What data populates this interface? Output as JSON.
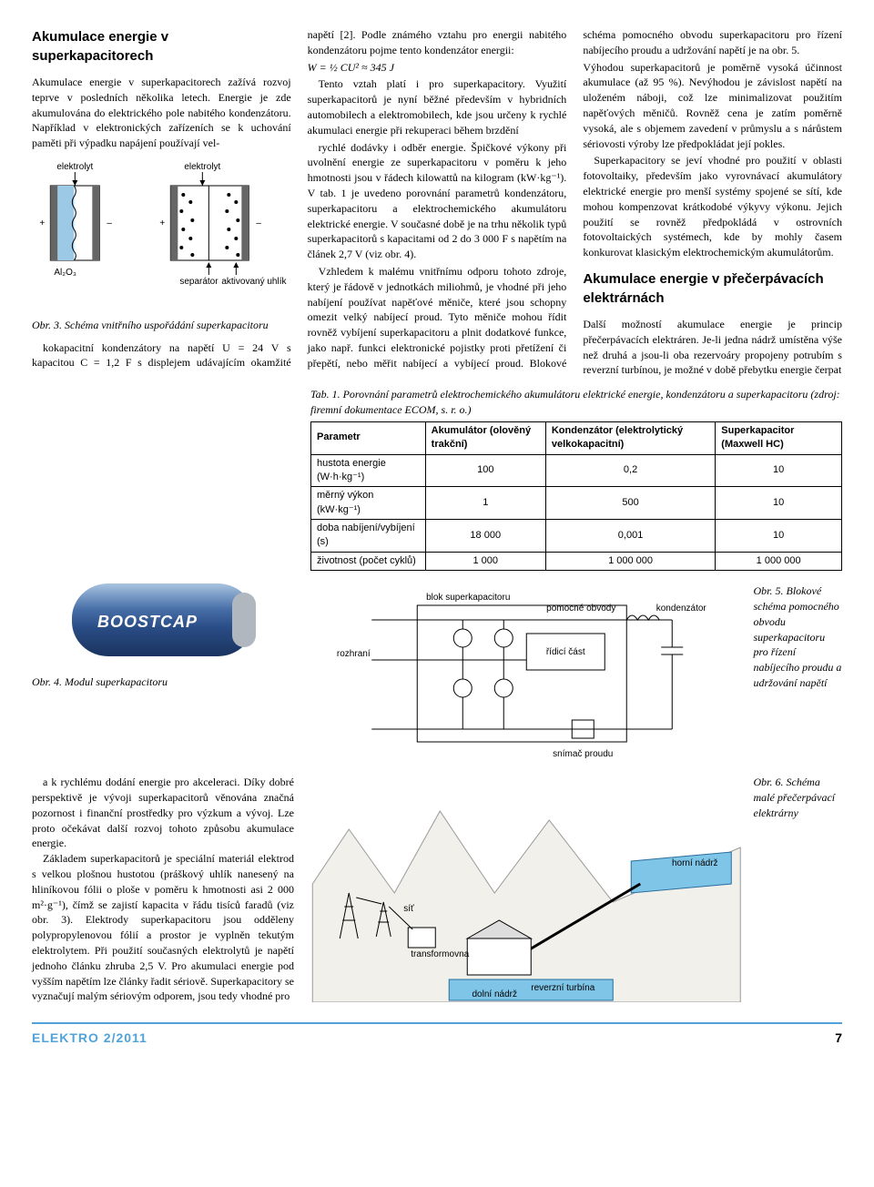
{
  "section1": {
    "title": "Akumulace energie v superkapacitorech",
    "p1": "Akumulace energie v superkapacitorech zažívá rozvoj teprve v posledních několika letech. Energie je zde akumulována do elektrického pole nabitého kondenzátoru. Například v elektronických zařízeních se k uchování paměti při výpadku napájení používají vel-",
    "fig3": {
      "labels": {
        "elektrolyt1": "elektrolyt",
        "elektrolyt2": "elektrolyt",
        "al2o3": "Al₂O₃",
        "separator": "separátor",
        "uhlik": "aktivovaný uhlík",
        "plus": "+",
        "minus": "–"
      },
      "caption": "Obr. 3. Schéma vnitřního uspořádání superkapacitoru",
      "colors": {
        "fill1": "#9bc9e6",
        "fill2": "#cfe5f2",
        "stroke": "#000000"
      }
    },
    "p2": "kokapacitní kondenzátory na napětí U = 24 V s kapacitou C = 1,2 F s displejem udávajícím okamžité napětí [2]. Podle známého vztahu pro energii nabitého kondenzátoru pojme tento kondenzátor energii:",
    "formula": "W = ½ CU² ≈ 345 J",
    "p3": "Tento vztah platí i pro superkapacitory. Využití superkapacitorů je nyní běžné především v hybridních automobilech a elektromobilech, kde jsou určeny k rychlé akumulaci energie při rekuperaci během brzdění",
    "p4": "rychlé dodávky i odběr energie. Špičkové výkony při uvolnění energie ze superkapacitoru v poměru k jeho hmotnosti jsou v řádech kilowattů na kilogram (kW·kg⁻¹). V tab. 1 je uvedeno porovnání parametrů kondenzátoru, superkapacitoru a elektrochemického akumulátoru elektrické energie. V současné době je na trhu několik typů superkapacitorů s kapacitami od 2 do 3 000 F s napětím na článek 2,7 V (viz obr. 4).",
    "p5": "Vzhledem k malému vnitřnímu odporu tohoto zdroje, který je řádově v jednotkách miliohmů, je vhodné při jeho nabíjení používat napěťové měniče, které jsou schopny omezit velký nabíjecí proud. Tyto měniče mohou řídit rovněž vybíjení superkapacitoru a plnit dodatkové funkce, jako např. funkci elektronické pojistky proti přetížení či přepětí, nebo měřit nabíjecí a vybíjecí proud. Blokové schéma pomocného obvodu superkapacitoru pro řízení nabíjecího proudu a udržování napětí je na obr. 5.",
    "p6": "Výhodou superkapacitorů je poměrně vysoká účinnost akumulace (až 95 %). Nevýhodou je závislost napětí na uloženém náboji, což lze minimalizovat použitím napěťových měničů. Rovněž cena je zatím poměrně vysoká, ale s objemem zavedení v průmyslu a s nárůstem sériovosti výroby lze předpokládat její pokles.",
    "p7": "Superkapacitory se jeví vhodné pro použití v oblasti fotovoltaiky, především jako vyrovnávací akumulátory elektrické energie pro menší systémy spojené se sítí, kde mohou kompenzovat krátkodobé výkyvy výkonu. Jejich použití se rovněž předpokládá v ostrovních fotovoltaických systémech, kde by mohly časem konkurovat klasickým elektrochemickým akumulátorům."
  },
  "section2": {
    "title": "Akumulace energie v přečerpávacích elektrárnách",
    "p1": "Další možností akumulace energie je princip přečerpávacích elektráren. Je-li jedna nádrž umístěna výše než druhá a jsou-li oba rezervoáry propojeny potrubím s reverzní turbínou, je možné v době přebytku energie čerpat"
  },
  "table1": {
    "caption": "Tab. 1. Porovnání parametrů elektrochemického akumulátoru elektrické energie, kondenzátoru a superkapacitoru (zdroj: firemní dokumentace ECOM, s. r. o.)",
    "headers": [
      "Parametr",
      "Akumulátor (olověný trakční)",
      "Kondenzátor (elektrolytický velkokapacitní)",
      "Superkapacitor (Maxwell HC)"
    ],
    "rows": [
      [
        "hustota energie (W·h·kg⁻¹)",
        "100",
        "0,2",
        "10"
      ],
      [
        "měrný výkon (kW·kg⁻¹)",
        "1",
        "500",
        "10"
      ],
      [
        "doba nabíjení/vybíjení (s)",
        "18 000",
        "0,001",
        "10"
      ],
      [
        "životnost (počet cyklů)",
        "1 000",
        "1 000 000",
        "1 000 000"
      ]
    ]
  },
  "fig4": {
    "caption": "Obr. 4. Modul superkapacitoru"
  },
  "fig5": {
    "caption": "Obr. 5. Blokové schéma pomocného obvodu superkapacitoru pro řízení nabíjecího proudu a udržování napětí",
    "labels": {
      "rozhrani": "rozhraní",
      "blok": "blok superkapacitoru",
      "pomocne": "pomocné obvody",
      "kondenzator": "kondenzátor",
      "ridici": "řídicí část",
      "snimac": "snímač proudu"
    }
  },
  "bottom": {
    "p1": "a k rychlému dodání energie pro akceleraci. Díky dobré perspektivě je vývoji superkapacitorů věnována značná pozornost i finanční prostředky pro výzkum a vývoj. Lze proto očekávat další rozvoj tohoto způsobu akumulace energie.",
    "p2": "Základem superkapacitorů je speciální materiál elektrod s velkou plošnou hustotou (práškový uhlík nanesený na hliníkovou fólii o ploše v poměru k hmotnosti asi 2 000 m²·g⁻¹), čímž se zajistí kapacita v řádu tisíců faradů (viz obr. 3). Elektrody superkapacitoru jsou odděleny polypropylenovou fólií a prostor je vyplněn tekutým elektrolytem. Při použití současných elektrolytů je napětí jednoho článku zhruba 2,5 V. Pro akumulaci energie pod vyšším napětím lze články řadit sériově. Superkapacitory se vyznačují malým sériovým odporem, jsou tedy vhodné pro"
  },
  "fig6": {
    "caption": "Obr. 6. Schéma malé přečerpávací elektrárny",
    "labels": {
      "sit": "síť",
      "trafo": "transformovna",
      "turbina": "reverzní turbína",
      "dolni": "dolní nádrž",
      "horni": "horní nádrž"
    },
    "colors": {
      "water": "#7ec5e8",
      "mountain": "#e8e6e0",
      "mountain_line": "#888"
    }
  },
  "footer": {
    "mag": "ELEKTRO 2/2011",
    "page": "7"
  }
}
